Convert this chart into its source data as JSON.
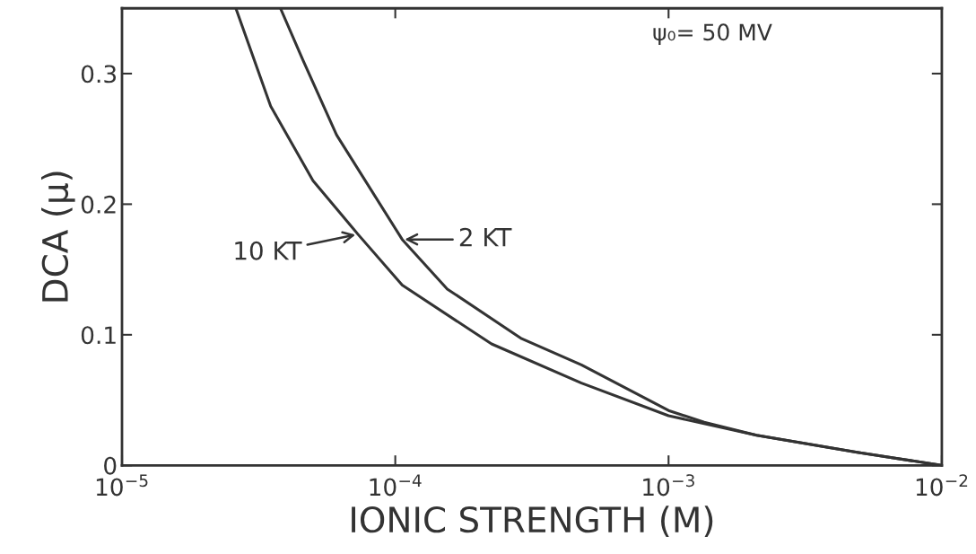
{
  "chart_data": {
    "type": "line",
    "xlabel": "IONIC STRENGTH (M)",
    "ylabel": "DCA (μ)",
    "annotations": [
      "ψ₀= 50 MV"
    ],
    "log": "x",
    "xlim": [
      1e-05,
      0.01
    ],
    "ylim": [
      0,
      0.35
    ],
    "xticks": [
      {
        "value": 1e-05,
        "label": "10$^{−5}$"
      },
      {
        "value": 0.0001,
        "label": "10$^{−4}$"
      },
      {
        "value": 0.001,
        "label": "10$^{−3}$"
      },
      {
        "value": 0.01,
        "label": "10$^{−2}$"
      }
    ],
    "yticks": [
      0,
      0.1,
      0.2,
      0.3
    ],
    "series": [
      {
        "name": "2 KT",
        "color": "#333333",
        "x": [
          3.8e-05,
          4.6e-05,
          6.1e-05,
          0.000106,
          0.000155,
          0.00029,
          0.00048,
          0.001,
          0.00135,
          0.0021,
          0.0049,
          0.01
        ],
        "values": [
          0.35,
          0.31,
          0.253,
          0.173,
          0.135,
          0.097,
          0.077,
          0.042,
          0.033,
          0.023,
          0.01,
          0.0
        ]
      },
      {
        "name": "10 KT",
        "color": "#333333",
        "x": [
          2.61e-05,
          3.5e-05,
          5e-05,
          7.3e-05,
          0.000106,
          0.000225,
          0.00048,
          0.001,
          0.0021,
          0.0049,
          0.01
        ],
        "values": [
          0.35,
          0.275,
          0.218,
          0.177,
          0.138,
          0.093,
          0.063,
          0.038,
          0.023,
          0.01,
          0.0
        ]
      }
    ]
  }
}
